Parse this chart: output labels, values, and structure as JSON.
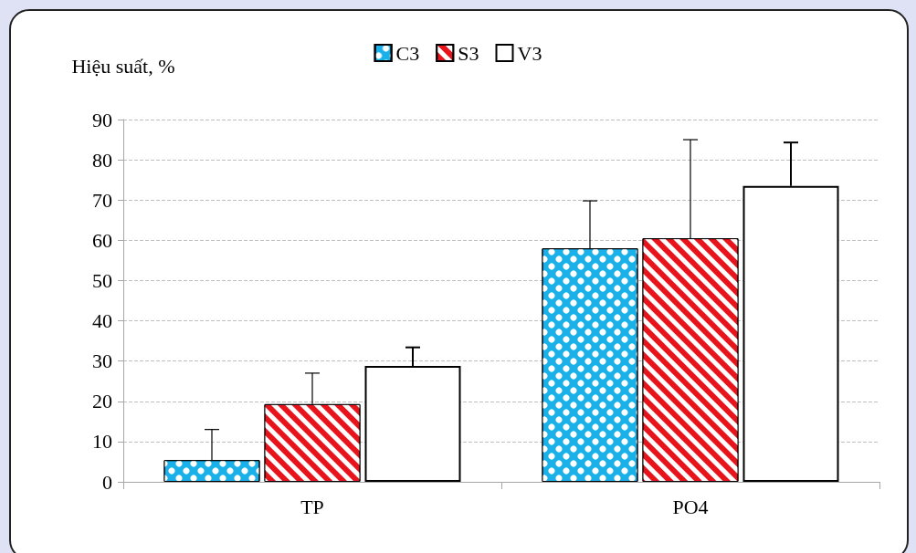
{
  "chart_data": {
    "type": "bar",
    "ylabel": "Hiệu suất, %",
    "categories": [
      "TP",
      "PO4"
    ],
    "series": [
      {
        "name": "C3",
        "color": "#1ab0ea",
        "values": [
          5.4,
          58
        ],
        "errors": [
          [
            5.4,
            13
          ],
          [
            58,
            69.8
          ]
        ]
      },
      {
        "name": "S3",
        "color": "#e8141c",
        "values": [
          19.3,
          60.5
        ],
        "errors": [
          [
            19.3,
            27
          ],
          [
            60.5,
            85
          ]
        ]
      },
      {
        "name": "V3",
        "color": "#ffffff",
        "values": [
          28.8,
          73.5
        ],
        "errors": [
          [
            28.8,
            33.4
          ],
          [
            73.5,
            84.3
          ]
        ]
      }
    ],
    "ylim": [
      0,
      90
    ],
    "yticks": [
      0,
      10,
      20,
      30,
      40,
      50,
      60,
      70,
      80,
      90
    ],
    "grid": "y",
    "legend": "top"
  }
}
